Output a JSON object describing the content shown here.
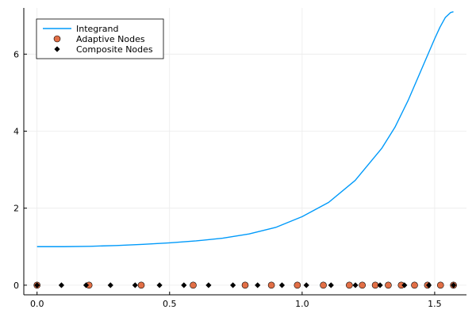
{
  "chart_data": {
    "type": "line+scatter",
    "title": "",
    "xlabel": "",
    "ylabel": "",
    "xlim": [
      -0.05,
      1.62
    ],
    "ylim": [
      -0.25,
      7.2
    ],
    "xticks": [
      0.0,
      0.5,
      1.0,
      1.5
    ],
    "xtick_labels": [
      "0.0",
      "0.5",
      "1.0",
      "1.5"
    ],
    "yticks": [
      0,
      2,
      4,
      6
    ],
    "ytick_labels": [
      "0",
      "2",
      "4",
      "6"
    ],
    "grid": true,
    "legend_position": "top-left",
    "colors": {
      "integrand": "#009AFA",
      "adaptive": "#E26F46",
      "composite": "#000000",
      "grid": "#EBEBEB",
      "axis": "#000000"
    },
    "series": [
      {
        "name": "Integrand",
        "kind": "line",
        "x": [
          0.0,
          0.1,
          0.2,
          0.3,
          0.4,
          0.5,
          0.6,
          0.7,
          0.8,
          0.9,
          1.0,
          1.1,
          1.2,
          1.3,
          1.35,
          1.4,
          1.45,
          1.5,
          1.52,
          1.54,
          1.56,
          1.5708
        ],
        "y": [
          1.0,
          1.0,
          1.01,
          1.03,
          1.06,
          1.1,
          1.15,
          1.22,
          1.33,
          1.5,
          1.78,
          2.15,
          2.72,
          3.55,
          4.1,
          4.8,
          5.6,
          6.4,
          6.7,
          6.95,
          7.08,
          7.1
        ]
      },
      {
        "name": "Adaptive Nodes",
        "kind": "scatter",
        "marker": "circle",
        "x": [
          0.0,
          0.196,
          0.393,
          0.589,
          0.785,
          0.884,
          0.982,
          1.08,
          1.178,
          1.227,
          1.276,
          1.325,
          1.374,
          1.424,
          1.473,
          1.522,
          1.571
        ],
        "y": [
          0,
          0,
          0,
          0,
          0,
          0,
          0,
          0,
          0,
          0,
          0,
          0,
          0,
          0,
          0,
          0,
          0
        ]
      },
      {
        "name": "Composite Nodes",
        "kind": "scatter",
        "marker": "diamond",
        "x": [
          0.0,
          0.092,
          0.185,
          0.277,
          0.37,
          0.462,
          0.554,
          0.647,
          0.739,
          0.832,
          0.924,
          1.016,
          1.109,
          1.201,
          1.294,
          1.386,
          1.478,
          1.571
        ],
        "y": [
          0,
          0,
          0,
          0,
          0,
          0,
          0,
          0,
          0,
          0,
          0,
          0,
          0,
          0,
          0,
          0,
          0,
          0
        ]
      }
    ]
  }
}
